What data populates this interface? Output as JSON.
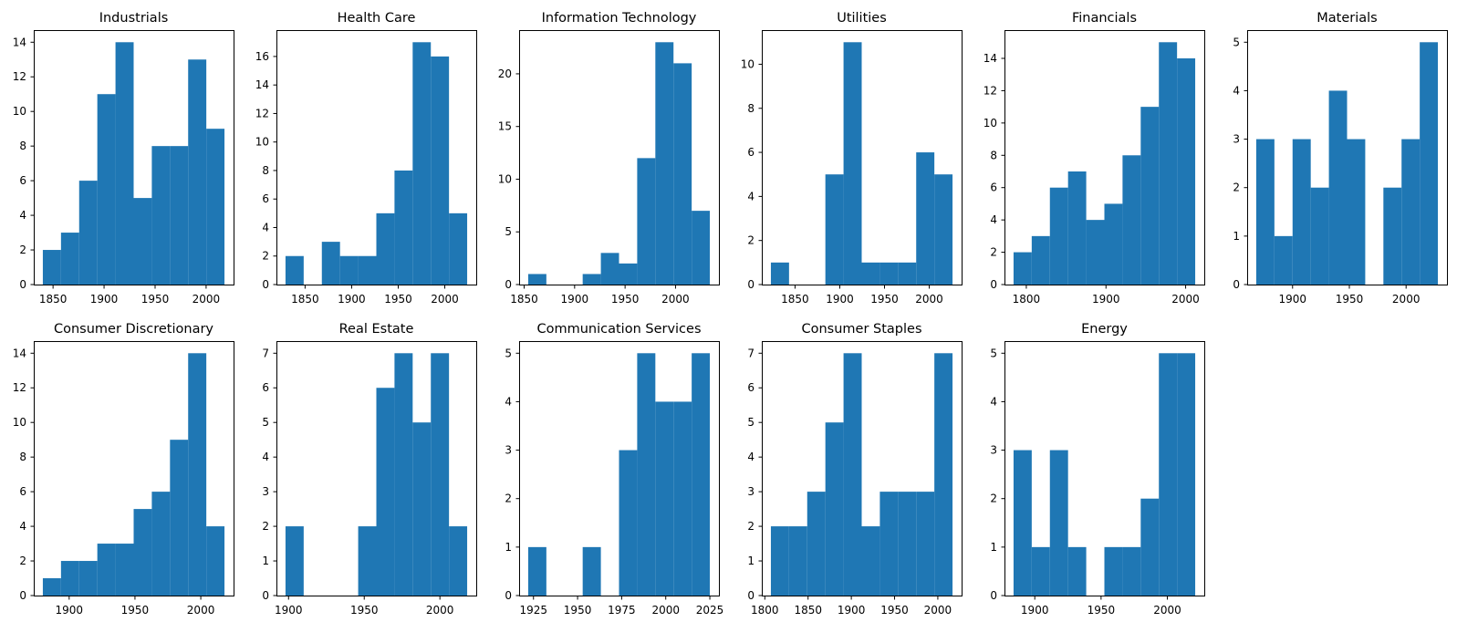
{
  "figure": {
    "background_color": "#ffffff",
    "bar_color": "#1f77b4",
    "spine_color": "#000000",
    "text_color": "#000000"
  },
  "chart_data": [
    {
      "type": "bar",
      "subtype": "histogram",
      "title": "Industrials",
      "row": 0,
      "col": 0,
      "bin_start": 1840,
      "bin_end": 2018,
      "counts": [
        2,
        3,
        6,
        11,
        14,
        5,
        8,
        8,
        13,
        9
      ],
      "xticks": [
        1850,
        1900,
        1950,
        2000
      ],
      "yticks": [
        0,
        2,
        4,
        6,
        8,
        10,
        12,
        14
      ],
      "xlabel": "",
      "ylabel": "",
      "grid": false,
      "legend": null
    },
    {
      "type": "bar",
      "subtype": "histogram",
      "title": "Health Care",
      "row": 0,
      "col": 1,
      "bin_start": 1829,
      "bin_end": 2024,
      "counts": [
        2,
        0,
        3,
        2,
        2,
        5,
        8,
        17,
        16,
        5
      ],
      "xticks": [
        1850,
        1900,
        1950,
        2000
      ],
      "yticks": [
        0,
        2,
        4,
        6,
        8,
        10,
        12,
        14,
        16
      ],
      "xlabel": "",
      "ylabel": "",
      "grid": false,
      "legend": null
    },
    {
      "type": "bar",
      "subtype": "histogram",
      "title": "Information Technology",
      "row": 0,
      "col": 2,
      "bin_start": 1854,
      "bin_end": 2034,
      "counts": [
        1,
        0,
        0,
        1,
        3,
        2,
        12,
        23,
        21,
        7
      ],
      "xticks": [
        1850,
        1900,
        1950,
        2000
      ],
      "yticks": [
        0,
        5,
        10,
        15,
        20
      ],
      "xlabel": "",
      "ylabel": "",
      "grid": false,
      "legend": null
    },
    {
      "type": "bar",
      "subtype": "histogram",
      "title": "Utilities",
      "row": 0,
      "col": 3,
      "bin_start": 1823,
      "bin_end": 2026,
      "counts": [
        1,
        0,
        0,
        5,
        11,
        1,
        1,
        1,
        6,
        5
      ],
      "xticks": [
        1850,
        1900,
        1950,
        2000
      ],
      "yticks": [
        0,
        2,
        4,
        6,
        8,
        10
      ],
      "xlabel": "",
      "ylabel": "",
      "grid": false,
      "legend": null
    },
    {
      "type": "bar",
      "subtype": "histogram",
      "title": "Financials",
      "row": 0,
      "col": 4,
      "bin_start": 1784,
      "bin_end": 2012,
      "counts": [
        2,
        3,
        6,
        7,
        4,
        5,
        8,
        11,
        15,
        14
      ],
      "xticks": [
        1800,
        1900,
        2000
      ],
      "yticks": [
        0,
        2,
        4,
        6,
        8,
        10,
        12,
        14
      ],
      "xlabel": "",
      "ylabel": "",
      "grid": false,
      "legend": null
    },
    {
      "type": "bar",
      "subtype": "histogram",
      "title": "Materials",
      "row": 0,
      "col": 5,
      "bin_start": 1868,
      "bin_end": 2028,
      "counts": [
        3,
        1,
        3,
        2,
        4,
        3,
        0,
        2,
        3,
        5
      ],
      "xticks": [
        1900,
        1950,
        2000
      ],
      "yticks": [
        0,
        1,
        2,
        3,
        4,
        5
      ],
      "xlabel": "",
      "ylabel": "",
      "grid": false,
      "legend": null
    },
    {
      "type": "bar",
      "subtype": "histogram",
      "title": "Consumer Discretionary",
      "row": 1,
      "col": 0,
      "bin_start": 1880,
      "bin_end": 2018,
      "counts": [
        1,
        2,
        2,
        3,
        3,
        5,
        6,
        9,
        14,
        4
      ],
      "xticks": [
        1900,
        1950,
        2000
      ],
      "yticks": [
        0,
        2,
        4,
        6,
        8,
        10,
        12,
        14
      ],
      "xlabel": "",
      "ylabel": "",
      "grid": false,
      "legend": null
    },
    {
      "type": "bar",
      "subtype": "histogram",
      "title": "Real Estate",
      "row": 1,
      "col": 1,
      "bin_start": 1898,
      "bin_end": 2018,
      "counts": [
        2,
        0,
        0,
        0,
        2,
        6,
        7,
        5,
        7,
        2
      ],
      "xticks": [
        1900,
        1950,
        2000
      ],
      "yticks": [
        0,
        1,
        2,
        3,
        4,
        5,
        6,
        7
      ],
      "xlabel": "",
      "ylabel": "",
      "grid": false,
      "legend": null
    },
    {
      "type": "bar",
      "subtype": "histogram",
      "title": "Communication Services",
      "row": 1,
      "col": 2,
      "bin_start": 1922,
      "bin_end": 2025,
      "counts": [
        1,
        0,
        0,
        1,
        0,
        3,
        5,
        4,
        4,
        5
      ],
      "xticks": [
        1925,
        1950,
        1975,
        2000,
        2025
      ],
      "yticks": [
        0,
        1,
        2,
        3,
        4,
        5
      ],
      "xlabel": "",
      "ylabel": "",
      "grid": false,
      "legend": null
    },
    {
      "type": "bar",
      "subtype": "histogram",
      "title": "Consumer Staples",
      "row": 1,
      "col": 3,
      "bin_start": 1807,
      "bin_end": 2017,
      "counts": [
        2,
        2,
        3,
        5,
        7,
        2,
        3,
        3,
        3,
        7
      ],
      "xticks": [
        1800,
        1850,
        1900,
        1950,
        2000
      ],
      "yticks": [
        0,
        1,
        2,
        3,
        4,
        5,
        6,
        7
      ],
      "xlabel": "",
      "ylabel": "",
      "grid": false,
      "legend": null
    },
    {
      "type": "bar",
      "subtype": "histogram",
      "title": "Energy",
      "row": 1,
      "col": 4,
      "bin_start": 1884,
      "bin_end": 2021,
      "counts": [
        3,
        1,
        3,
        1,
        0,
        1,
        1,
        2,
        5,
        5
      ],
      "xticks": [
        1900,
        1950,
        2000
      ],
      "yticks": [
        0,
        1,
        2,
        3,
        4,
        5
      ],
      "xlabel": "",
      "ylabel": "",
      "grid": false,
      "legend": null
    }
  ]
}
